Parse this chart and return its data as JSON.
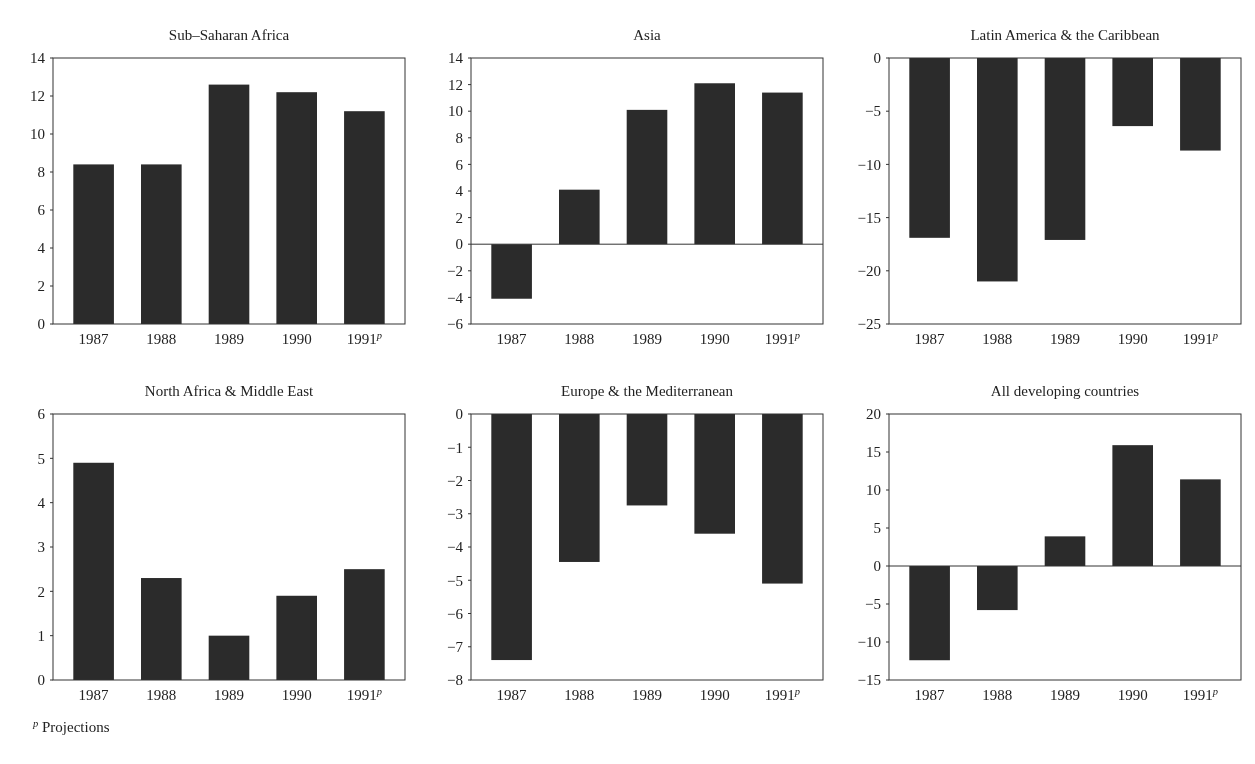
{
  "chart_data": [
    {
      "type": "bar",
      "title": "Sub–Saharan Africa",
      "categories": [
        "1987",
        "1988",
        "1989",
        "1990",
        "1991$^{p}$"
      ],
      "values": [
        8.4,
        8.4,
        12.6,
        12.2,
        11.2
      ],
      "color": "#2b2b2b",
      "ylim": [
        0,
        14
      ],
      "yticks": [
        0,
        2,
        4,
        6,
        8,
        10,
        12,
        14
      ]
    },
    {
      "type": "bar",
      "title": "Asia",
      "categories": [
        "1987",
        "1988",
        "1989",
        "1990",
        "1991$^{p}$"
      ],
      "values": [
        -4.1,
        4.1,
        10.1,
        12.1,
        11.4
      ],
      "color": "#2b2b2b",
      "ylim": [
        -6,
        14
      ],
      "yticks": [
        -6,
        -4,
        -2,
        0,
        2,
        4,
        6,
        8,
        10,
        12,
        14
      ]
    },
    {
      "type": "bar",
      "title": "Latin America & the Caribbean",
      "categories": [
        "1987",
        "1988",
        "1989",
        "1990",
        "1991$^{p}$"
      ],
      "values": [
        -16.9,
        -21,
        -17.1,
        -6.4,
        -8.7
      ],
      "color": "#2b2b2b",
      "ylim": [
        -25,
        0
      ],
      "yticks": [
        -25,
        -20,
        -15,
        -10,
        -5,
        0
      ]
    },
    {
      "type": "bar",
      "title": "North Africa & Middle East",
      "categories": [
        "1987",
        "1988",
        "1989",
        "1990",
        "1991$^{p}$"
      ],
      "values": [
        4.9,
        2.3,
        1.0,
        1.9,
        2.5
      ],
      "color": "#2b2b2b",
      "ylim": [
        0,
        6
      ],
      "yticks": [
        0,
        1,
        2,
        3,
        4,
        5,
        6
      ],
      "annotations": [
        "$^{p}$ Projections"
      ]
    },
    {
      "type": "bar",
      "title": "Europe & the Mediterranean",
      "categories": [
        "1987",
        "1988",
        "1989",
        "1990",
        "1991$^{p}$"
      ],
      "values": [
        -7.4,
        -4.45,
        -2.75,
        -3.6,
        -5.1
      ],
      "color": "#2b2b2b",
      "ylim": [
        -8,
        0
      ],
      "yticks": [
        -8,
        -7,
        -6,
        -5,
        -4,
        -3,
        -2,
        -1,
        0
      ]
    },
    {
      "type": "bar",
      "title": "All developing countries",
      "categories": [
        "1987",
        "1988",
        "1989",
        "1990",
        "1991$^{p}$"
      ],
      "values": [
        -12.4,
        -5.8,
        3.9,
        15.9,
        11.4
      ],
      "color": "#2b2b2b",
      "ylim": [
        -15,
        20
      ],
      "yticks": [
        -15,
        -10,
        -5,
        0,
        5,
        10,
        15,
        20
      ]
    }
  ]
}
